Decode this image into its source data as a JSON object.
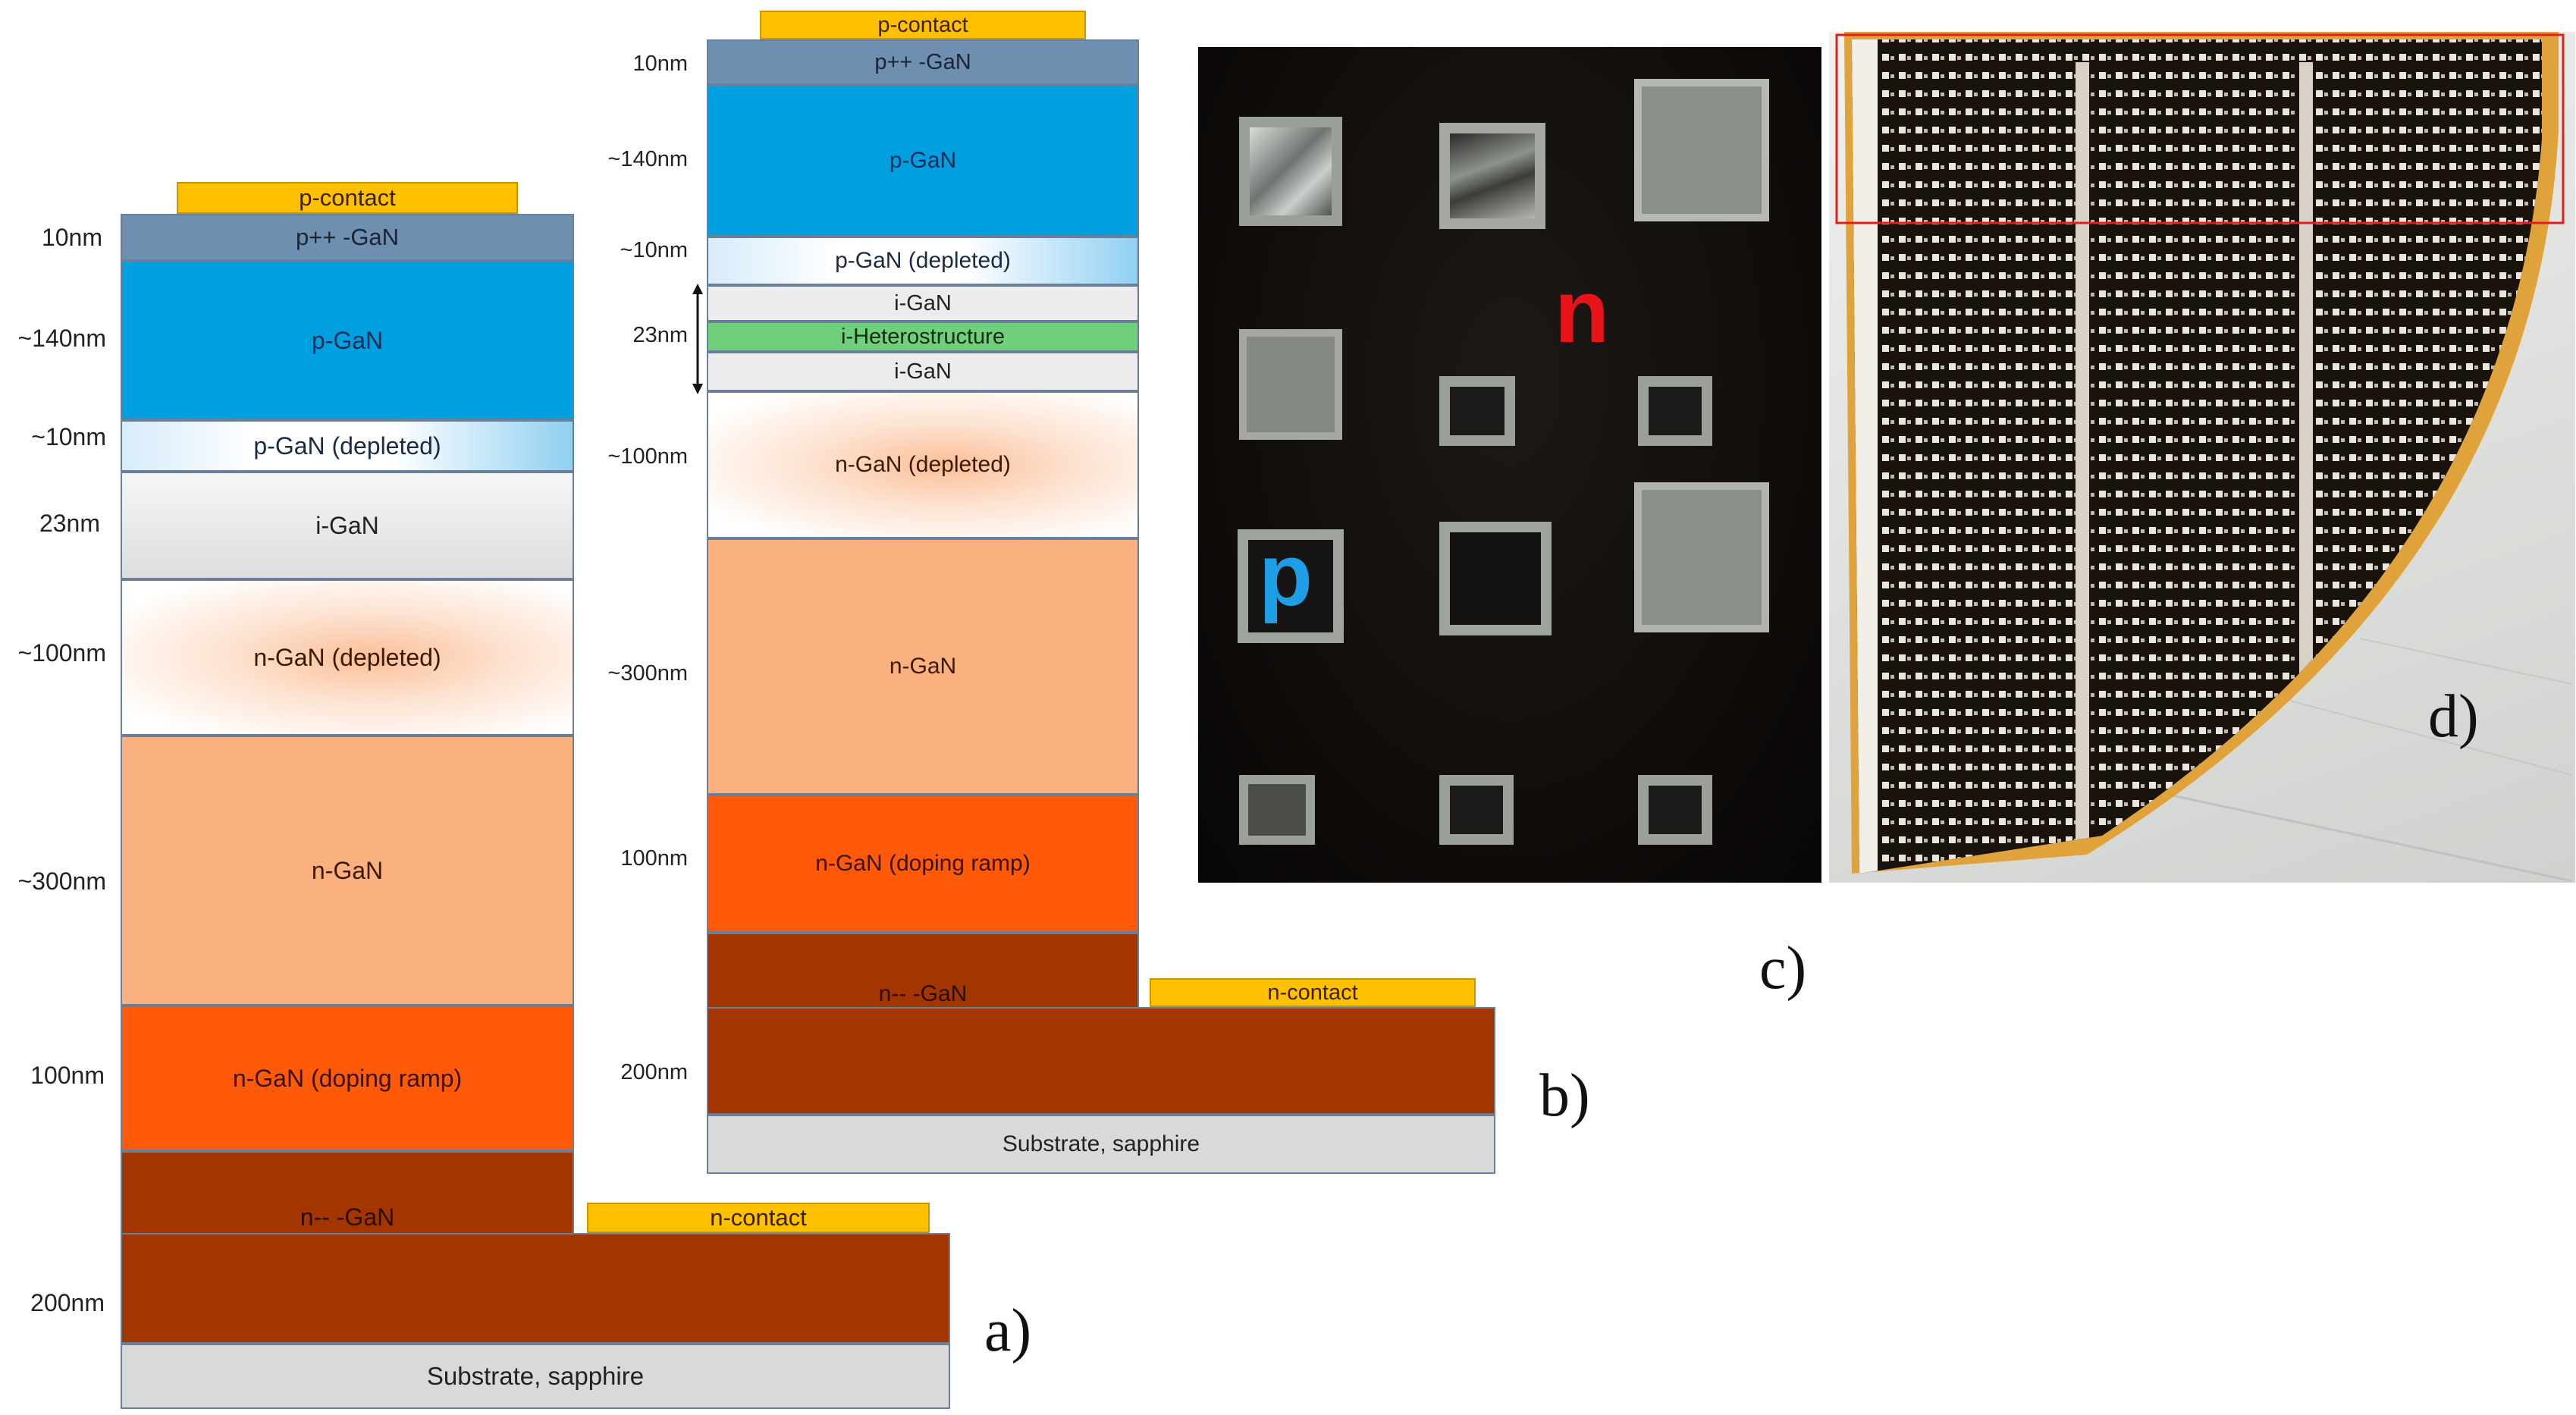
{
  "colors": {
    "p_contact": "#ffc000",
    "p_pp_GaN": "#6f8fb0",
    "p_GaN": "#00a0e0",
    "i_GaN": "#e9e9e9",
    "heterostructure": "#6fcf7a",
    "n_GaN": "#fbb07f",
    "n_GaN_ramp": "#ff5a0a",
    "n_minus_GaN": "#a33600",
    "substrate": "#d9d9d9",
    "n_label": "#e8141a",
    "p_label": "#1f9ee8"
  },
  "panel_a": {
    "label": "a)",
    "p_contact": "p-contact",
    "n_contact": "n-contact",
    "layers": {
      "ppp_gan": "p++ -GaN",
      "p_gan": "p-GaN",
      "p_gan_depleted": "p-GaN (depleted)",
      "i_gan": "i-GaN",
      "n_gan_depleted": "n-GaN (depleted)",
      "n_gan": "n-GaN",
      "n_gan_ramp": "n-GaN (doping ramp)",
      "n_minus_gan": "n-- -GaN",
      "substrate": "Substrate, sapphire"
    },
    "thickness": {
      "ppp_gan": "10nm",
      "p_gan": "~140nm",
      "p_gan_depleted": "~10nm",
      "i_gan": "23nm",
      "n_gan_depleted": "~100nm",
      "n_gan": "~300nm",
      "n_gan_ramp": "100nm",
      "n_minus_gan": "200nm"
    }
  },
  "panel_b": {
    "label": "b)",
    "p_contact": "p-contact",
    "n_contact": "n-contact",
    "layers": {
      "ppp_gan": "p++ -GaN",
      "p_gan": "p-GaN",
      "p_gan_depleted": "p-GaN (depleted)",
      "i_gan_top": "i-GaN",
      "heterostructure": "i-Heterostructure",
      "i_gan_bottom": "i-GaN",
      "n_gan_depleted": "n-GaN (depleted)",
      "n_gan": "n-GaN",
      "n_gan_ramp": "n-GaN (doping ramp)",
      "n_minus_gan": "n-- -GaN",
      "substrate": "Substrate, sapphire"
    },
    "thickness": {
      "ppp_gan": "10nm",
      "p_gan": "~140nm",
      "p_gan_depleted": "~10nm",
      "intrinsic_region": "23nm",
      "n_gan_depleted": "~100nm",
      "n_gan": "~300nm",
      "n_gan_ramp": "100nm",
      "n_minus_gan": "200nm"
    }
  },
  "panel_c": {
    "label": "c)",
    "n_mark": "n",
    "p_mark": "p"
  },
  "panel_d": {
    "label": "d)"
  }
}
